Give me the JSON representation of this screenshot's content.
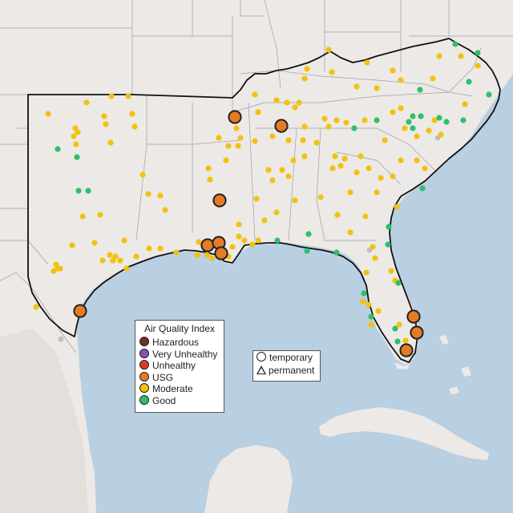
{
  "legend": {
    "title": "Air Quality Index",
    "categories": [
      {
        "label": "Hazardous",
        "color": "#7a2a2a"
      },
      {
        "label": "Very Unhealthy",
        "color": "#8e4fb0"
      },
      {
        "label": "Unhealthy",
        "color": "#e0392b"
      },
      {
        "label": "USG",
        "color": "#e47c25"
      },
      {
        "label": "Moderate",
        "color": "#f2c20f"
      },
      {
        "label": "Good",
        "color": "#2fbf6a"
      }
    ]
  },
  "type_legend": {
    "temporary": "temporary",
    "permanent": "permanent"
  },
  "colors": {
    "water": "#b9cfe2",
    "land": "#ece9e6",
    "border": "#111111",
    "no_data": "#bdbdbd"
  }
}
